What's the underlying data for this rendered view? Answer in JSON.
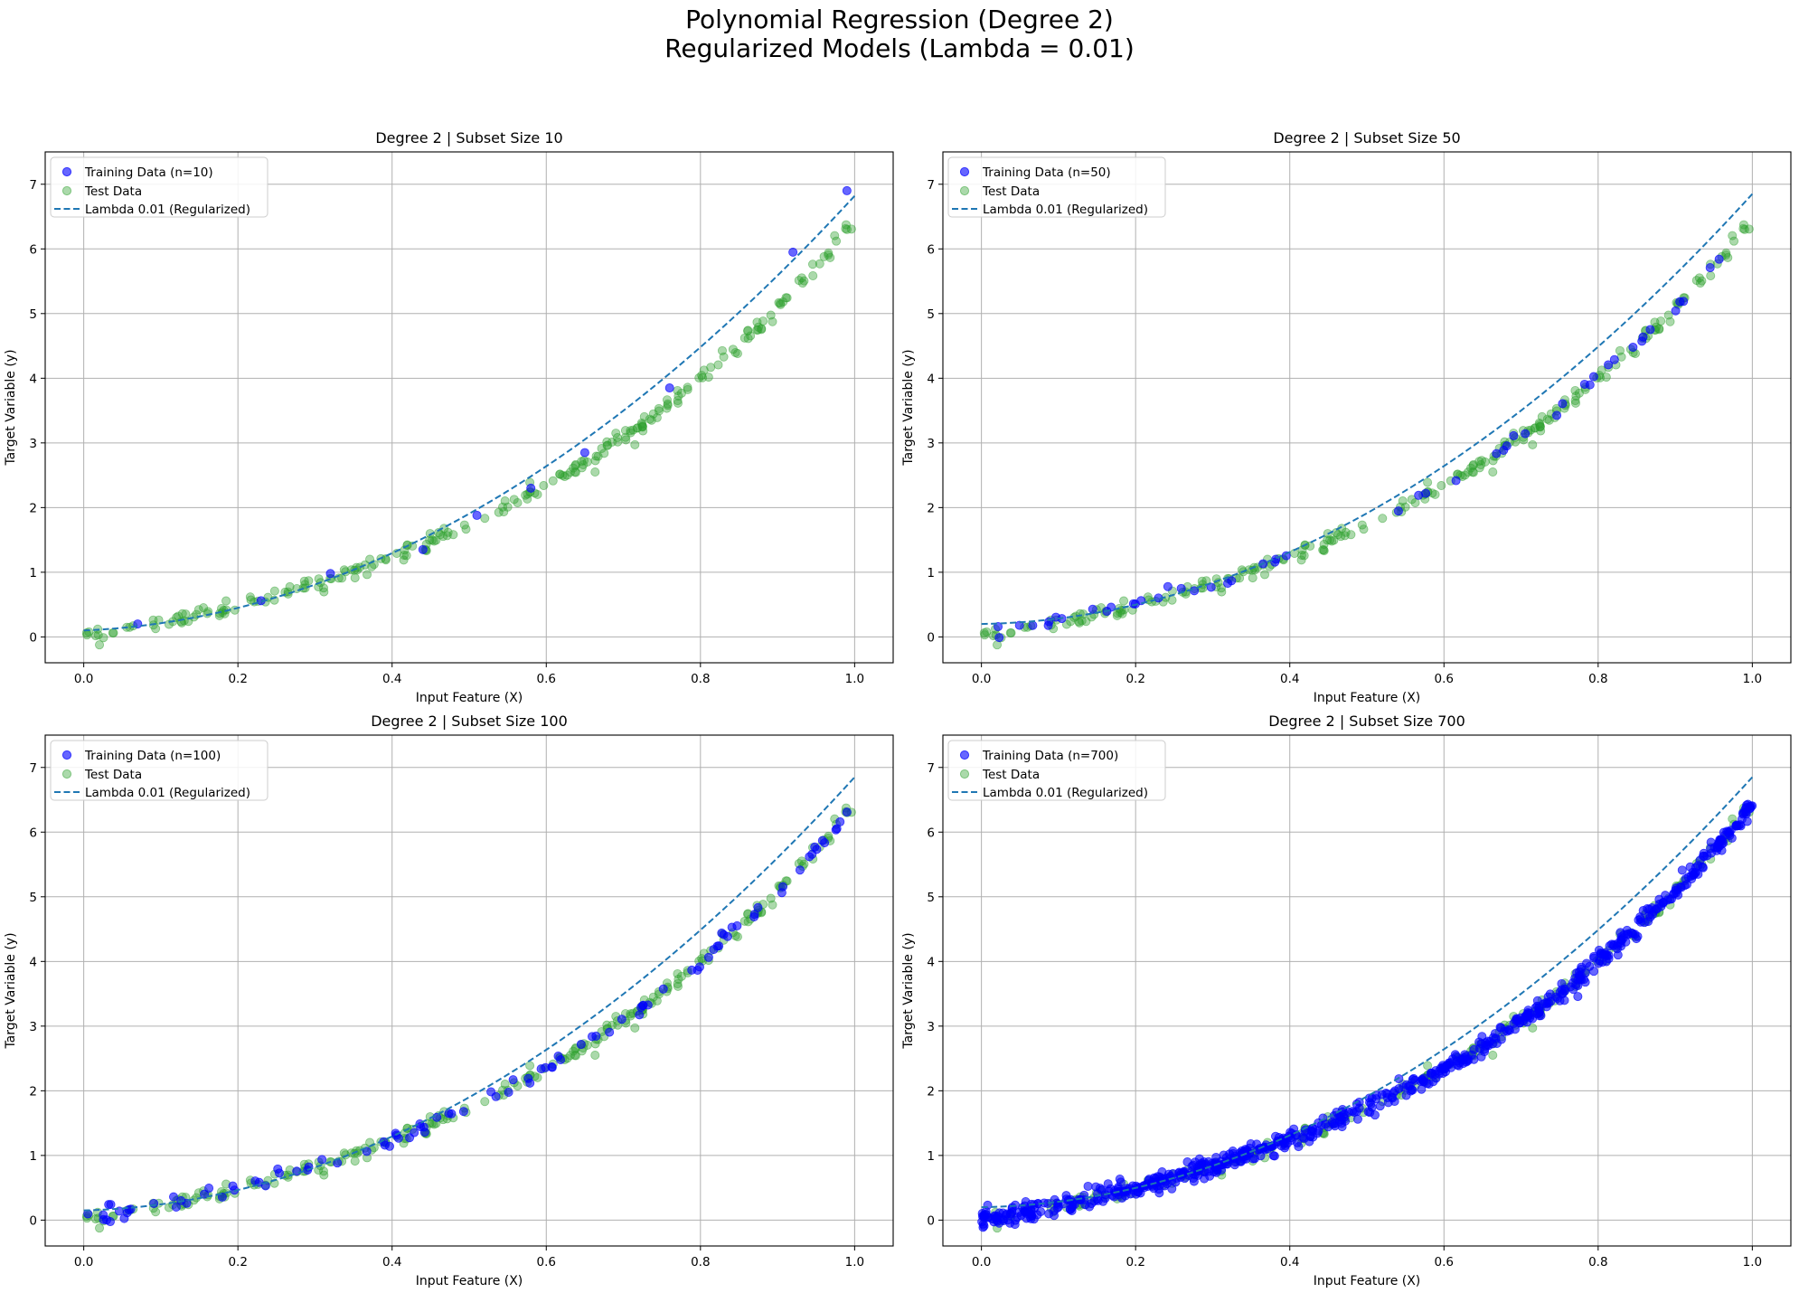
{
  "figure": {
    "title_line1": "Polynomial Regression (Degree 2)",
    "title_line2": "Regularized Models (Lambda = 0.01)"
  },
  "colors": {
    "training": "#0000ff",
    "test": "#2ca02c",
    "fit": "#1f77b4",
    "grid": "#b0b0b0",
    "axes": "#000000"
  },
  "chart_data": [
    {
      "type": "scatter",
      "title": "Degree 2 | Subset Size 10",
      "xlabel": "Input Feature (X)",
      "ylabel": "Target Variable (y)",
      "xlim": [
        -0.05,
        1.05
      ],
      "ylim": [
        -0.4,
        7.5
      ],
      "xticks": [
        0.0,
        0.2,
        0.4,
        0.6,
        0.8,
        1.0
      ],
      "xtick_labels": [
        "0.0",
        "0.2",
        "0.4",
        "0.6",
        "0.8",
        "1.0"
      ],
      "yticks": [
        0,
        1,
        2,
        3,
        4,
        5,
        6,
        7
      ],
      "ytick_labels": [
        "0",
        "1",
        "2",
        "3",
        "4",
        "5",
        "6",
        "7"
      ],
      "grid": true,
      "legend_position": "upper-left",
      "series": [
        {
          "name": "Training Data (n=10)",
          "kind": "points",
          "x": [
            0.07,
            0.23,
            0.32,
            0.44,
            0.51,
            0.58,
            0.65,
            0.76,
            0.92,
            0.99
          ],
          "y": [
            0.2,
            0.56,
            0.98,
            1.35,
            1.88,
            2.3,
            2.85,
            3.85,
            5.95,
            6.9
          ]
        },
        {
          "name": "Test Data",
          "kind": "points",
          "n": 240
        },
        {
          "name": "Lambda 0.01 (Regularized)",
          "kind": "fit",
          "coef": [
            0.1,
            0.5,
            6.22
          ]
        }
      ]
    },
    {
      "type": "scatter",
      "title": "Degree 2 | Subset Size 50",
      "xlabel": "Input Feature (X)",
      "ylabel": "Target Variable (y)",
      "xlim": [
        -0.05,
        1.05
      ],
      "ylim": [
        -0.4,
        7.5
      ],
      "xticks": [
        0.0,
        0.2,
        0.4,
        0.6,
        0.8,
        1.0
      ],
      "xtick_labels": [
        "0.0",
        "0.2",
        "0.4",
        "0.6",
        "0.8",
        "1.0"
      ],
      "yticks": [
        0,
        1,
        2,
        3,
        4,
        5,
        6,
        7
      ],
      "ytick_labels": [
        "0",
        "1",
        "2",
        "3",
        "4",
        "5",
        "6",
        "7"
      ],
      "grid": true,
      "legend_position": "upper-left",
      "series": [
        {
          "name": "Training Data (n=50)",
          "kind": "points",
          "n": 50
        },
        {
          "name": "Test Data",
          "kind": "points",
          "n": 240
        },
        {
          "name": "Lambda 0.01 (Regularized)",
          "kind": "fit",
          "coef": [
            0.2,
            0.2,
            6.45
          ]
        }
      ]
    },
    {
      "type": "scatter",
      "title": "Degree 2 | Subset Size 100",
      "xlabel": "Input Feature (X)",
      "ylabel": "Target Variable (y)",
      "xlim": [
        -0.05,
        1.05
      ],
      "ylim": [
        -0.4,
        7.5
      ],
      "xticks": [
        0.0,
        0.2,
        0.4,
        0.6,
        0.8,
        1.0
      ],
      "xtick_labels": [
        "0.0",
        "0.2",
        "0.4",
        "0.6",
        "0.8",
        "1.0"
      ],
      "yticks": [
        0,
        1,
        2,
        3,
        4,
        5,
        6,
        7
      ],
      "ytick_labels": [
        "0",
        "1",
        "2",
        "3",
        "4",
        "5",
        "6",
        "7"
      ],
      "grid": true,
      "legend_position": "upper-left",
      "series": [
        {
          "name": "Training Data (n=100)",
          "kind": "points",
          "n": 100
        },
        {
          "name": "Test Data",
          "kind": "points",
          "n": 240
        },
        {
          "name": "Lambda 0.01 (Regularized)",
          "kind": "fit",
          "coef": [
            0.15,
            0.3,
            6.4
          ]
        }
      ]
    },
    {
      "type": "scatter",
      "title": "Degree 2 | Subset Size 700",
      "xlabel": "Input Feature (X)",
      "ylabel": "Target Variable (y)",
      "xlim": [
        -0.05,
        1.05
      ],
      "ylim": [
        -0.4,
        7.5
      ],
      "xticks": [
        0.0,
        0.2,
        0.4,
        0.6,
        0.8,
        1.0
      ],
      "xtick_labels": [
        "0.0",
        "0.2",
        "0.4",
        "0.6",
        "0.8",
        "1.0"
      ],
      "yticks": [
        0,
        1,
        2,
        3,
        4,
        5,
        6,
        7
      ],
      "ytick_labels": [
        "0",
        "1",
        "2",
        "3",
        "4",
        "5",
        "6",
        "7"
      ],
      "grid": true,
      "legend_position": "upper-left",
      "series": [
        {
          "name": "Training Data (n=700)",
          "kind": "points",
          "n": 700
        },
        {
          "name": "Test Data",
          "kind": "points",
          "n": 240
        },
        {
          "name": "Lambda 0.01 (Regularized)",
          "kind": "fit",
          "coef": [
            0.2,
            0.2,
            6.45
          ]
        }
      ]
    }
  ]
}
